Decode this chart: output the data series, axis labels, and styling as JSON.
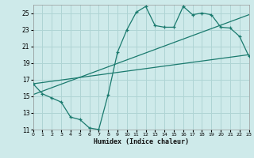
{
  "xlabel": "Humidex (Indice chaleur)",
  "bg_color": "#ceeaea",
  "grid_color": "#afd4d4",
  "line_color": "#1a7a6e",
  "xmin": 0,
  "xmax": 23,
  "ymin": 11,
  "ymax": 26,
  "yticks": [
    11,
    13,
    15,
    17,
    19,
    21,
    23,
    25
  ],
  "xticks": [
    0,
    1,
    2,
    3,
    4,
    5,
    6,
    7,
    8,
    9,
    10,
    11,
    12,
    13,
    14,
    15,
    16,
    17,
    18,
    19,
    20,
    21,
    22,
    23
  ],
  "series1_x": [
    0,
    1,
    2,
    3,
    4,
    5,
    6,
    7,
    8,
    9,
    10,
    11,
    12,
    13,
    14,
    15,
    16,
    17,
    18,
    19,
    20,
    21,
    22,
    23
  ],
  "series1_y": [
    16.5,
    15.3,
    14.8,
    14.3,
    12.5,
    12.2,
    11.2,
    11.0,
    15.2,
    20.3,
    23.0,
    25.1,
    25.8,
    23.5,
    23.3,
    23.3,
    25.8,
    24.8,
    25.0,
    24.8,
    23.3,
    23.2,
    22.2,
    19.8
  ],
  "trend1_x": [
    0,
    23
  ],
  "trend1_y": [
    16.5,
    20.0
  ],
  "trend2_x": [
    0,
    23
  ],
  "trend2_y": [
    15.2,
    24.8
  ]
}
